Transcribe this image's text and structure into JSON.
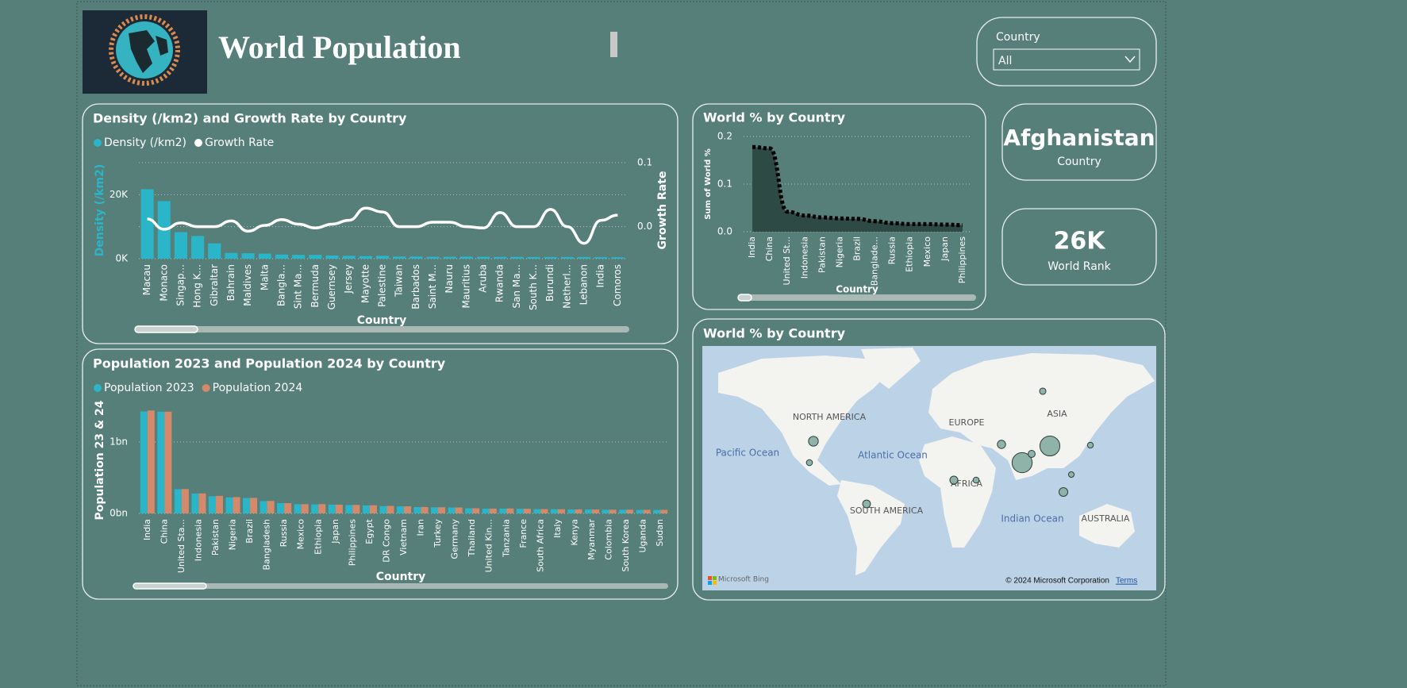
{
  "header": {
    "title": "World Population"
  },
  "slicer": {
    "label": "Country",
    "value": "All"
  },
  "cards": [
    {
      "value": "Afghanistan",
      "label": "Country"
    },
    {
      "value": "26K",
      "label": "World Rank"
    }
  ],
  "chart_data": [
    {
      "type": "combo",
      "title": "Density (/km2) and Growth Rate by Country",
      "x_label": "Country",
      "y_label": "Density (/km2)",
      "y2_label": "Growth Rate",
      "categories": [
        "Macau",
        "Monaco",
        "Singap...",
        "Hong K...",
        "Gibraltar",
        "Bahrain",
        "Maldives",
        "Malta",
        "Bangla...",
        "Sint Ma...",
        "Bermuda",
        "Guernsey",
        "Jersey",
        "Mayotte",
        "Palestine",
        "Taiwan",
        "Barbados",
        "Saint M...",
        "Nauru",
        "Mauritius",
        "Aruba",
        "Rwanda",
        "San Ma...",
        "South K...",
        "Burundi",
        "Netherl...",
        "Lebanon",
        "India",
        "Comoros"
      ],
      "series": [
        {
          "name": "Density (/km2)",
          "type": "bar",
          "color": "#2bb5c8",
          "values": [
            21700,
            18000,
            8300,
            7100,
            4800,
            1800,
            1700,
            1600,
            1300,
            1200,
            1200,
            1000,
            900,
            800,
            900,
            670,
            670,
            600,
            600,
            620,
            590,
            560,
            560,
            520,
            520,
            520,
            520,
            480,
            450
          ]
        },
        {
          "name": "Growth Rate",
          "type": "line",
          "color": "#ffffff",
          "axis": "y2",
          "values": [
            0.012,
            -0.004,
            0.006,
            0,
            0,
            0.009,
            -0.007,
            0.002,
            0.011,
            0.004,
            -0.002,
            0.004,
            0.01,
            0.029,
            0.023,
            0,
            0,
            0.007,
            0.007,
            0,
            -0.002,
            0.022,
            0,
            0,
            0.027,
            0,
            -0.026,
            0.01,
            0.018
          ]
        }
      ],
      "ylim": [
        0,
        30000
      ],
      "yticks": [
        {
          "value": 0,
          "label": "0K"
        },
        {
          "value": 20000,
          "label": "20K"
        }
      ],
      "y2lim": [
        -0.05,
        0.1
      ],
      "y2ticks": [
        {
          "value": 0,
          "label": "0.0"
        },
        0.1
      ],
      "grid": true
    },
    {
      "type": "area",
      "title": "World % by Country",
      "x_label": "Country",
      "y_label": "Sum of World %",
      "color": "#2e4a45",
      "categories": [
        "India",
        "China",
        "United St...",
        "Indonesia",
        "Pakistan",
        "Nigeria",
        "Brazil",
        "Banglade...",
        "Russia",
        "Ethiopia",
        "Mexico",
        "Japan",
        "Philippines"
      ],
      "values": [
        0.178,
        0.175,
        0.042,
        0.034,
        0.03,
        0.028,
        0.027,
        0.022,
        0.018,
        0.016,
        0.016,
        0.015,
        0.014
      ],
      "ylim": [
        0,
        0.2
      ],
      "yticks": [
        {
          "value": 0,
          "label": "0.0"
        },
        0.1,
        0.2
      ],
      "grid": true
    },
    {
      "type": "grouped-bar",
      "title": "Population 2023 and Population 2024 by Country",
      "x_label": "Country",
      "y_label": "Population 23 & 24",
      "categories": [
        "India",
        "China",
        "United Sta...",
        "Indonesia",
        "Pakistan",
        "Nigeria",
        "Brazil",
        "Bangladesh",
        "Russia",
        "Mexico",
        "Ethiopia",
        "Japan",
        "Philippines",
        "Egypt",
        "DR Congo",
        "Vietnam",
        "Iran",
        "Turkey",
        "Germany",
        "Thailand",
        "United Kin...",
        "Tanzania",
        "France",
        "South Africa",
        "Italy",
        "Kenya",
        "Myanmar",
        "Colombia",
        "South Korea",
        "Uganda",
        "Sudan"
      ],
      "series": [
        {
          "name": "Population 2023",
          "color": "#2bb5c8",
          "values": [
            1428000000,
            1425000000,
            340000000,
            277500000,
            240500000,
            223800000,
            216400000,
            172900000,
            144400000,
            128500000,
            126500000,
            123300000,
            117300000,
            112700000,
            102300000,
            98900000,
            89200000,
            85800000,
            83300000,
            71800000,
            67700000,
            67400000,
            64800000,
            60400000,
            58900000,
            55100000,
            54600000,
            52100000,
            51800000,
            48600000,
            48100000
          ]
        },
        {
          "name": "Population 2024",
          "color": "#d4896a",
          "values": [
            1441000000,
            1425000000,
            341800000,
            279800000,
            245200000,
            229200000,
            217600000,
            174700000,
            144000000,
            129400000,
            129700000,
            122600000,
            119100000,
            114500000,
            105600000,
            99500000,
            89800000,
            86300000,
            83300000,
            71900000,
            68000000,
            69400000,
            64900000,
            61000000,
            58700000,
            56200000,
            55000000,
            52300000,
            51700000,
            50000000,
            50000000
          ]
        }
      ],
      "ylim": [
        0,
        1500000000
      ],
      "yticks": [
        {
          "value": 0,
          "label": "0bn"
        },
        {
          "value": 1000000000,
          "label": "1bn"
        }
      ],
      "grid": true
    },
    {
      "type": "map",
      "title": "World % by Country",
      "region_labels": [
        "NORTH AMERICA",
        "EUROPE",
        "ASIA",
        "AFRICA",
        "SOUTH AMERICA",
        "AUSTRALIA"
      ],
      "ocean_labels": [
        "Pacific Ocean",
        "Atlantic Ocean",
        "Indian Ocean"
      ],
      "provider": "Microsoft Bing",
      "copyright": "© 2024 Microsoft Corporation",
      "terms": "Terms"
    }
  ]
}
